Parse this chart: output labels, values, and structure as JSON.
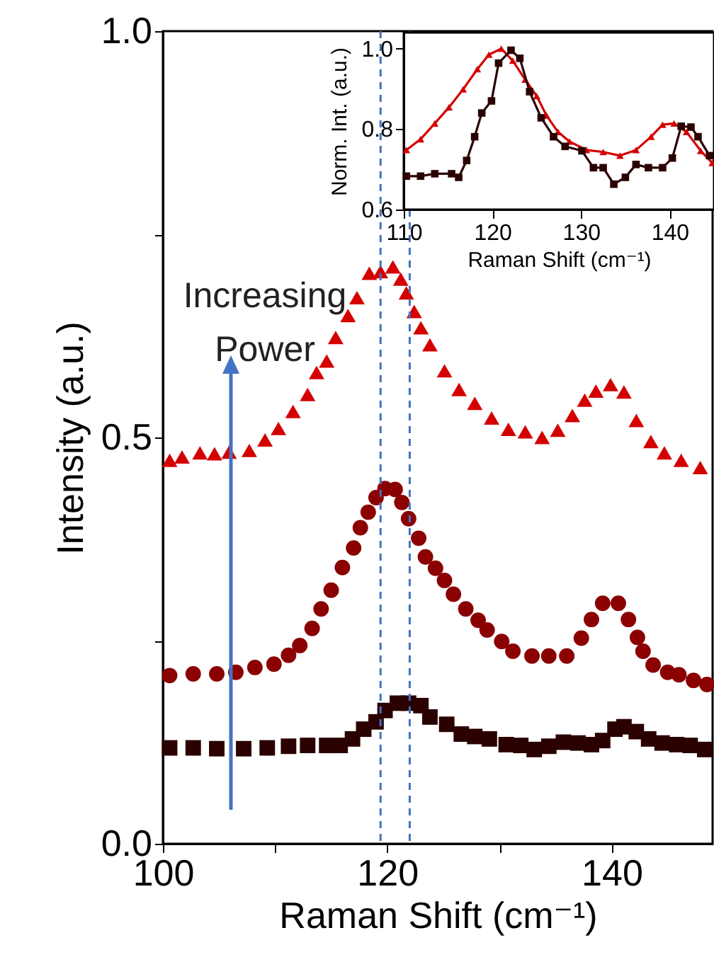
{
  "chart_data": [
    {
      "type": "scatter",
      "xlabel": "Raman Shift (cm⁻¹)",
      "ylabel": "Intensity (a.u.)",
      "xlim": [
        100,
        149
      ],
      "ylim": [
        0,
        1
      ],
      "xticks": [
        100,
        {
          "value": 110,
          "label": null
        },
        120,
        {
          "value": 130,
          "label": null
        },
        140
      ],
      "yticks": [
        {
          "value": 0,
          "label": "0.0"
        },
        {
          "value": 0.25,
          "label": null
        },
        {
          "value": 0.5,
          "label": "0.5"
        },
        {
          "value": 0.75,
          "label": null
        },
        {
          "value": 1,
          "label": "1.0"
        }
      ],
      "series": [
        {
          "color": "#2b0000",
          "marker": "square",
          "x": [
            100.6,
            102.7,
            104.8,
            107.2,
            109.3,
            111.2,
            112.9,
            114.6,
            115.8,
            116.9,
            117.9,
            119.0,
            119.8,
            120.9,
            121.9,
            123.0,
            123.8,
            125.3,
            126.6,
            127.8,
            129.1,
            130.6,
            131.9,
            133.1,
            134.4,
            135.7,
            137.0,
            138.2,
            139.2,
            140.3,
            141.1,
            142.2,
            143.3,
            144.5,
            145.8,
            147.0,
            148.3
          ],
          "values": [
            0.118,
            0.118,
            0.117,
            0.117,
            0.118,
            0.12,
            0.121,
            0.121,
            0.121,
            0.129,
            0.141,
            0.15,
            0.164,
            0.173,
            0.173,
            0.17,
            0.156,
            0.147,
            0.135,
            0.132,
            0.129,
            0.122,
            0.121,
            0.116,
            0.12,
            0.125,
            0.124,
            0.122,
            0.127,
            0.141,
            0.144,
            0.138,
            0.129,
            0.124,
            0.122,
            0.121,
            0.116
          ]
        },
        {
          "color": "#8b0000",
          "marker": "circle",
          "x": [
            100.6,
            102.7,
            104.8,
            106.5,
            108.2,
            109.9,
            111.2,
            112.2,
            113.3,
            114.1,
            115.0,
            116.0,
            117.0,
            117.6,
            118.3,
            119.0,
            119.8,
            120.7,
            121.3,
            121.9,
            122.8,
            123.4,
            124.3,
            125.1,
            125.9,
            127.0,
            128.1,
            128.9,
            130.2,
            131.2,
            132.9,
            134.4,
            136.0,
            137.3,
            138.2,
            139.2,
            140.6,
            141.5,
            142.3,
            142.8,
            143.7,
            145.0,
            146.0,
            147.3,
            148.5
          ],
          "values": [
            0.207,
            0.209,
            0.209,
            0.211,
            0.217,
            0.221,
            0.232,
            0.244,
            0.265,
            0.289,
            0.312,
            0.34,
            0.364,
            0.389,
            0.408,
            0.426,
            0.437,
            0.436,
            0.42,
            0.4,
            0.376,
            0.353,
            0.339,
            0.324,
            0.307,
            0.289,
            0.275,
            0.263,
            0.249,
            0.237,
            0.231,
            0.231,
            0.231,
            0.253,
            0.276,
            0.296,
            0.296,
            0.276,
            0.254,
            0.237,
            0.22,
            0.211,
            0.208,
            0.201,
            0.196
          ]
        },
        {
          "color": "#d40000",
          "marker": "triangle",
          "x": [
            100.6,
            101.7,
            103.3,
            104.6,
            105.9,
            107.7,
            109.1,
            110.3,
            111.6,
            112.9,
            113.7,
            114.6,
            115.4,
            116.5,
            117.3,
            118.4,
            119.4,
            120.5,
            121.2,
            121.7,
            122.4,
            123.0,
            123.8,
            125.1,
            126.4,
            127.8,
            129.3,
            130.8,
            132.3,
            133.8,
            135.2,
            136.5,
            137.6,
            138.6,
            139.9,
            141.1,
            142.2,
            143.5,
            144.7,
            146.2,
            147.9
          ],
          "values": [
            0.472,
            0.476,
            0.481,
            0.48,
            0.482,
            0.484,
            0.497,
            0.511,
            0.532,
            0.553,
            0.58,
            0.594,
            0.623,
            0.65,
            0.672,
            0.702,
            0.704,
            0.71,
            0.695,
            0.678,
            0.655,
            0.635,
            0.614,
            0.582,
            0.559,
            0.542,
            0.524,
            0.51,
            0.507,
            0.5,
            0.509,
            0.527,
            0.546,
            0.557,
            0.565,
            0.556,
            0.521,
            0.495,
            0.481,
            0.472,
            0.463
          ]
        }
      ],
      "ref_lines": [
        {
          "axis": "x",
          "value": 119.4,
          "color": "#4472c4",
          "line_style": "dashed"
        },
        {
          "axis": "x",
          "value": 122.0,
          "color": "#4472c4",
          "line_style": "dashed"
        }
      ],
      "annotations": [
        "Increasing Power"
      ]
    },
    {
      "type": "line",
      "xlabel": "Raman Shift (cm⁻¹)",
      "ylabel": "Norm. Int. (a.u.)",
      "xlim": [
        110,
        145
      ],
      "ylim": [
        0.6,
        1.04
      ],
      "xticks": [
        110,
        120,
        130,
        140
      ],
      "yticks": [
        {
          "value": 0.6,
          "label": "0.6"
        },
        {
          "value": 0.8,
          "label": "0.8"
        },
        {
          "value": 1,
          "label": "1.0"
        }
      ],
      "series": [
        {
          "color": "#d40000",
          "marker": "triangle",
          "x": [
            110.3,
            111.9,
            113.5,
            115.1,
            116.7,
            118.3,
            119.6,
            121.0,
            122.3,
            123.7,
            125.0,
            126.1,
            127.4,
            128.7,
            130.6,
            132.5,
            134.4,
            136.2,
            137.9,
            139.2,
            140.5,
            141.9,
            143.5,
            144.8
          ],
          "values": [
            0.748,
            0.775,
            0.814,
            0.854,
            0.899,
            0.949,
            0.985,
            1.0,
            0.97,
            0.923,
            0.882,
            0.834,
            0.793,
            0.769,
            0.748,
            0.743,
            0.734,
            0.748,
            0.781,
            0.811,
            0.814,
            0.793,
            0.746,
            0.716
          ]
        },
        {
          "color": "#2b0000",
          "marker": "square",
          "x": [
            110.3,
            111.9,
            113.5,
            115.4,
            116.2,
            117.1,
            118.0,
            118.8,
            119.9,
            120.7,
            122.1,
            123.1,
            124.2,
            125.5,
            126.9,
            128.2,
            130.1,
            131.4,
            132.5,
            133.7,
            135.0,
            136.2,
            137.6,
            139.2,
            140.3,
            141.3,
            142.4,
            143.2,
            144.5
          ],
          "values": [
            0.683,
            0.683,
            0.689,
            0.689,
            0.68,
            0.722,
            0.781,
            0.84,
            0.87,
            0.964,
            0.996,
            0.976,
            0.893,
            0.828,
            0.781,
            0.757,
            0.746,
            0.704,
            0.704,
            0.663,
            0.68,
            0.712,
            0.704,
            0.704,
            0.728,
            0.807,
            0.805,
            0.781,
            0.734
          ]
        }
      ]
    }
  ]
}
